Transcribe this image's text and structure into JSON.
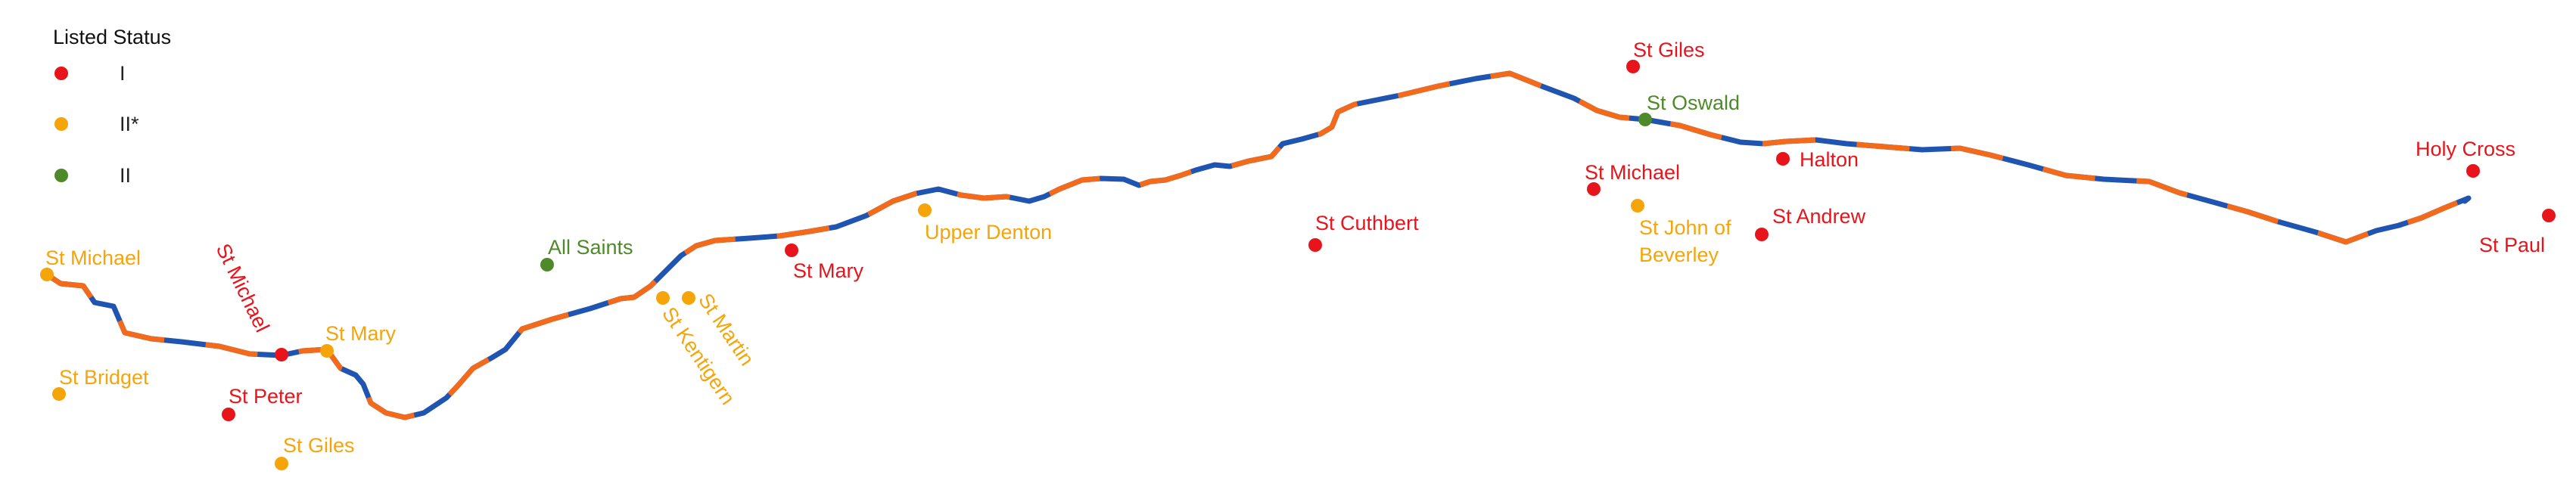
{
  "legend": {
    "title": "Listed Status",
    "items": [
      {
        "label": "I",
        "color": "#e8141c"
      },
      {
        "label": "II*",
        "color": "#f5a50a"
      },
      {
        "label": "II",
        "color": "#4e8a2a"
      }
    ]
  },
  "route": {
    "colors": [
      "#1f55b0",
      "#f26a1b"
    ]
  },
  "churches": [
    {
      "id": "st-michael-w",
      "name": "St Michael",
      "grade": "II*"
    },
    {
      "id": "st-bridget",
      "name": "St Bridget",
      "grade": "II*"
    },
    {
      "id": "st-michael-2",
      "name": "St Michael",
      "grade": "I"
    },
    {
      "id": "st-peter",
      "name": "St Peter",
      "grade": "I"
    },
    {
      "id": "st-mary-w",
      "name": "St Mary",
      "grade": "II*"
    },
    {
      "id": "st-giles-w",
      "name": "St Giles",
      "grade": "II*"
    },
    {
      "id": "all-saints",
      "name": "All Saints",
      "grade": "II"
    },
    {
      "id": "st-kentigern",
      "name": "St Kentigern",
      "grade": "II*"
    },
    {
      "id": "st-martin",
      "name": "St Martin",
      "grade": "II*"
    },
    {
      "id": "st-mary-e",
      "name": "St Mary",
      "grade": "I"
    },
    {
      "id": "upper-denton",
      "name": "Upper Denton",
      "grade": "II*"
    },
    {
      "id": "st-cuthbert",
      "name": "St Cuthbert",
      "grade": "I"
    },
    {
      "id": "st-giles-e",
      "name": "St Giles",
      "grade": "I"
    },
    {
      "id": "st-oswald",
      "name": "St Oswald",
      "grade": "II"
    },
    {
      "id": "st-michael-e",
      "name": "St Michael",
      "grade": "I"
    },
    {
      "id": "st-john",
      "name": "St John of Beverley",
      "grade": "II*"
    },
    {
      "id": "halton",
      "name": "Halton",
      "grade": "I"
    },
    {
      "id": "st-andrew",
      "name": "St Andrew",
      "grade": "I"
    },
    {
      "id": "holy-cross",
      "name": "Holy Cross",
      "grade": "I"
    },
    {
      "id": "st-paul",
      "name": "St Paul",
      "grade": "I"
    }
  ]
}
